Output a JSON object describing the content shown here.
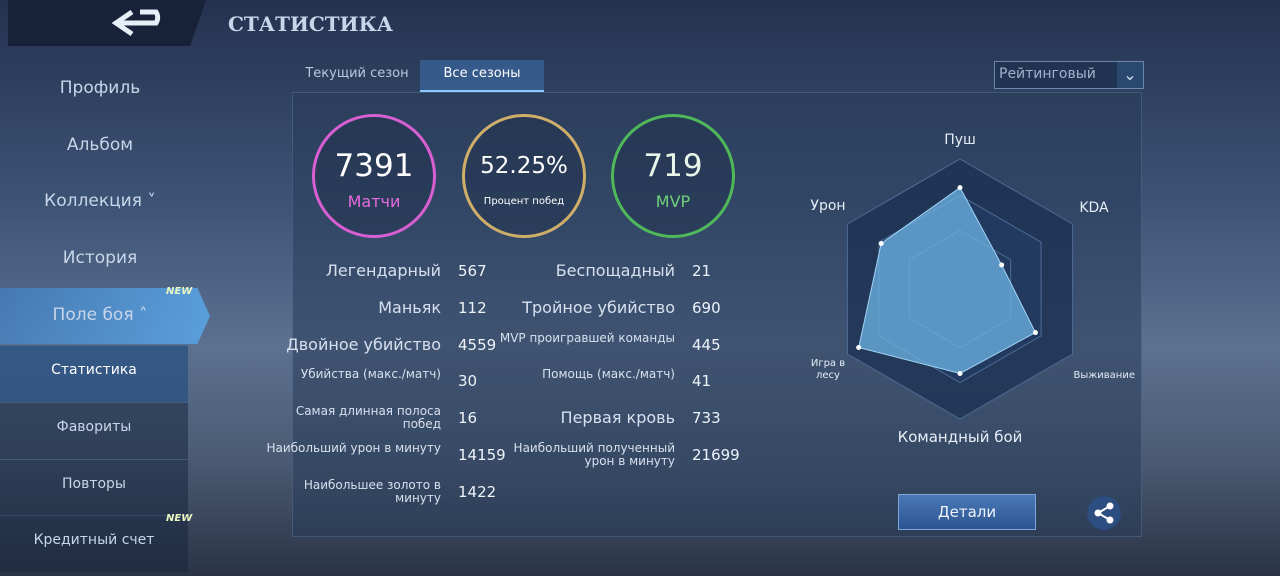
{
  "header": {
    "title": "СТАТИСТИКА"
  },
  "sidebar": {
    "items": [
      {
        "label": "Профиль"
      },
      {
        "label": "Альбом"
      },
      {
        "label": "Коллекция"
      },
      {
        "label": "История"
      },
      {
        "label": "Поле боя",
        "badge": "NEW"
      },
      {
        "label": "Статистика"
      },
      {
        "label": "Фавориты"
      },
      {
        "label": "Повторы"
      },
      {
        "label": "Кредитный счет",
        "badge": "NEW"
      }
    ]
  },
  "tabs": [
    "Текущий сезон",
    "Все сезоны"
  ],
  "mode": "Рейтинговый",
  "summary": [
    {
      "value": "7391",
      "label": "Матчи"
    },
    {
      "value": "52.25%",
      "label": "Процент побед"
    },
    {
      "value": "719",
      "label": "MVP"
    }
  ],
  "stats": {
    "left": [
      {
        "label": "Легендарный",
        "value": 567
      },
      {
        "label": "Маньяк",
        "value": 112
      },
      {
        "label": "Двойное убийство",
        "value": 4559
      },
      {
        "label": "Убийства (макс./матч)",
        "value": 30
      },
      {
        "label": "Самая длинная полоса побед",
        "value": 16
      },
      {
        "label": "Наибольший урон в минуту",
        "value": 14159
      },
      {
        "label": "Наибольшее золото в минуту",
        "value": 1422
      }
    ],
    "right": [
      {
        "label": "Беспощадный",
        "value": 21
      },
      {
        "label": "Тройное убийство",
        "value": 690
      },
      {
        "label": "MVP проигравшей команды",
        "value": 445
      },
      {
        "label": "Помощь (макс./матч)",
        "value": 41
      },
      {
        "label": "Первая кровь",
        "value": 733
      },
      {
        "label": "Наибольший полученный урон в минуту",
        "value": 21699
      }
    ]
  },
  "radar": {
    "axes": [
      "Пуш",
      "KDA",
      "Выживание",
      "Командный бой",
      "Игра в лесу",
      "Урон"
    ],
    "values": [
      0.78,
      0.37,
      0.67,
      0.65,
      0.9,
      0.7
    ]
  },
  "button": "Детали"
}
